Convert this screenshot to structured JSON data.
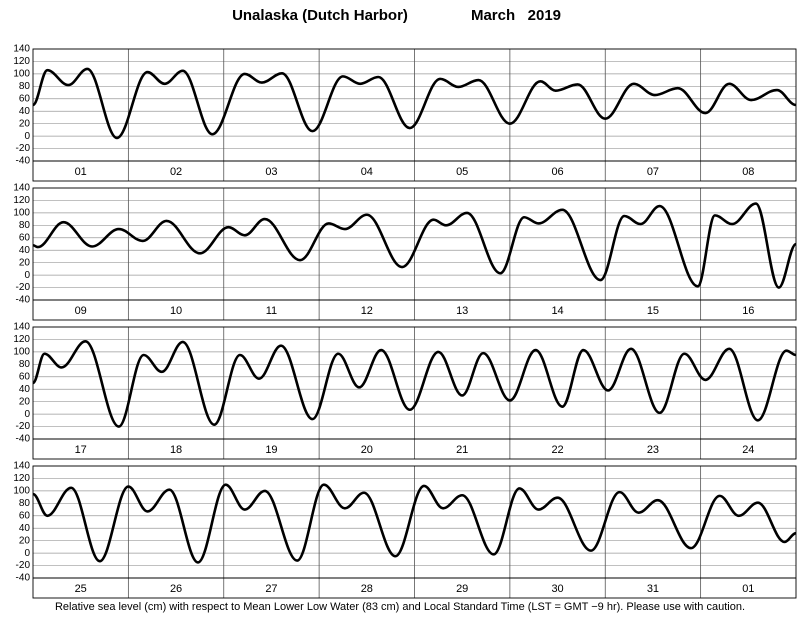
{
  "title": "Unalaska (Dutch Harbor)",
  "date": "March   2019",
  "footnote": "Relative sea level (cm) with respect to Mean Lower Low Water (83 cm) and Local Standard Time (LST = GMT −9 hr). Please use with caution.",
  "chart_data": [
    {
      "type": "line",
      "categories": [
        "01",
        "02",
        "03",
        "04",
        "05",
        "06",
        "07",
        "08"
      ],
      "x": [
        0,
        0.15,
        0.37,
        0.57,
        0.88,
        1.2,
        1.38,
        1.57,
        1.88,
        2.22,
        2.4,
        2.61,
        2.93,
        3.25,
        3.43,
        3.62,
        3.95,
        4.27,
        4.46,
        4.67,
        5.0,
        5.32,
        5.48,
        5.71,
        6.0,
        6.3,
        6.52,
        6.76,
        7.05,
        7.3,
        7.53,
        7.8,
        8
      ],
      "series": [
        {
          "color": "#000000",
          "values": [
            50,
            106,
            82,
            108,
            -3,
            103,
            84,
            105,
            3,
            100,
            86,
            101,
            8,
            96,
            84,
            95,
            13,
            92,
            79,
            90,
            20,
            88,
            73,
            83,
            28,
            84,
            66,
            77,
            37,
            84,
            58,
            74,
            50
          ]
        }
      ],
      "xlim": [
        0,
        8
      ],
      "ylim": [
        -40,
        140
      ],
      "yticks": [
        -40,
        -20,
        0,
        20,
        40,
        60,
        80,
        100,
        120,
        140
      ],
      "grid": true
    },
    {
      "type": "line",
      "categories": [
        "09",
        "10",
        "11",
        "12",
        "13",
        "14",
        "15",
        "16"
      ],
      "x": [
        0,
        0.05,
        0.32,
        0.62,
        0.9,
        1.15,
        1.4,
        1.75,
        2.05,
        2.22,
        2.43,
        2.8,
        3.1,
        3.27,
        3.5,
        3.87,
        4.2,
        4.33,
        4.55,
        4.9,
        5.15,
        5.3,
        5.55,
        5.95,
        6.2,
        6.37,
        6.57,
        6.97,
        7.15,
        7.33,
        7.58,
        7.82,
        8
      ],
      "series": [
        {
          "color": "#000000",
          "values": [
            48,
            45,
            85,
            46,
            74,
            55,
            87,
            35,
            77,
            64,
            90,
            24,
            83,
            74,
            97,
            13,
            89,
            80,
            100,
            3,
            93,
            83,
            105,
            -8,
            95,
            82,
            111,
            -18,
            96,
            82,
            115,
            -20,
            50
          ]
        }
      ],
      "xlim": [
        0,
        8
      ],
      "ylim": [
        -40,
        140
      ],
      "yticks": [
        -40,
        -20,
        0,
        20,
        40,
        60,
        80,
        100,
        120,
        140
      ],
      "grid": true
    },
    {
      "type": "line",
      "categories": [
        "17",
        "18",
        "19",
        "20",
        "21",
        "22",
        "23",
        "24"
      ],
      "x": [
        0,
        0.12,
        0.3,
        0.55,
        0.9,
        1.16,
        1.35,
        1.57,
        1.9,
        2.17,
        2.37,
        2.6,
        2.93,
        3.2,
        3.42,
        3.65,
        3.95,
        4.25,
        4.5,
        4.72,
        5.0,
        5.27,
        5.55,
        5.77,
        6.03,
        6.27,
        6.57,
        6.83,
        7.05,
        7.3,
        7.6,
        7.9,
        8
      ],
      "series": [
        {
          "color": "#000000",
          "values": [
            50,
            97,
            75,
            117,
            -20,
            95,
            68,
            116,
            -17,
            95,
            57,
            110,
            -8,
            97,
            43,
            103,
            7,
            100,
            30,
            98,
            22,
            103,
            12,
            103,
            38,
            105,
            2,
            97,
            55,
            105,
            -10,
            102,
            95
          ]
        }
      ],
      "xlim": [
        0,
        8
      ],
      "ylim": [
        -40,
        140
      ],
      "yticks": [
        -40,
        -20,
        0,
        20,
        40,
        60,
        80,
        100,
        120,
        140
      ],
      "grid": true
    },
    {
      "type": "line",
      "categories": [
        "25",
        "26",
        "27",
        "28",
        "29",
        "30",
        "31",
        "01"
      ],
      "x": [
        0,
        0.15,
        0.4,
        0.7,
        1.0,
        1.2,
        1.43,
        1.73,
        2.02,
        2.22,
        2.43,
        2.77,
        3.05,
        3.27,
        3.47,
        3.8,
        4.1,
        4.3,
        4.5,
        4.83,
        5.1,
        5.3,
        5.5,
        5.85,
        6.15,
        6.35,
        6.55,
        6.9,
        7.2,
        7.4,
        7.6,
        7.88,
        8
      ],
      "series": [
        {
          "color": "#000000",
          "values": [
            95,
            60,
            105,
            -13,
            107,
            67,
            102,
            -15,
            110,
            70,
            100,
            -12,
            110,
            72,
            97,
            -5,
            108,
            72,
            93,
            -2,
            104,
            70,
            89,
            4,
            98,
            65,
            85,
            8,
            92,
            60,
            81,
            18,
            32
          ]
        }
      ],
      "xlim": [
        0,
        8
      ],
      "ylim": [
        -40,
        140
      ],
      "yticks": [
        -40,
        -20,
        0,
        20,
        40,
        60,
        80,
        100,
        120,
        140
      ],
      "grid": true
    }
  ]
}
